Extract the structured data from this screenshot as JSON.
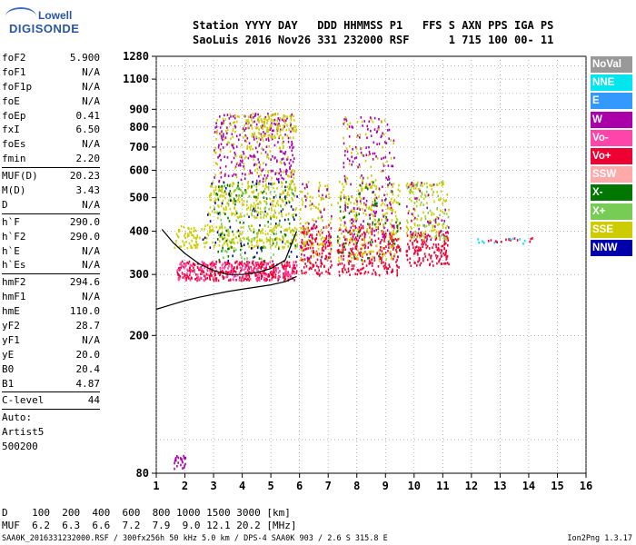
{
  "logo": {
    "line1": "Lowell",
    "line2": "DIGISONDE"
  },
  "header": {
    "line1": "Station YYYY DAY   DDD HHMMSS P1   FFS S AXN PPS IGA PS",
    "line2": "SaoLuis 2016 Nov26 331 232000 RSF      1 715 100 00- 11"
  },
  "params": [
    {
      "label": "foF2",
      "value": "5.900"
    },
    {
      "label": "foF1",
      "value": "N/A"
    },
    {
      "label": "foF1p",
      "value": "N/A"
    },
    {
      "label": "foE",
      "value": "N/A"
    },
    {
      "label": "foEp",
      "value": "0.41"
    },
    {
      "label": "fxI",
      "value": "6.50"
    },
    {
      "label": "foEs",
      "value": "N/A"
    },
    {
      "label": "fmin",
      "value": "2.20"
    },
    {
      "sep": true
    },
    {
      "label": "MUF(D)",
      "value": "20.23"
    },
    {
      "label": "M(D)",
      "value": "3.43"
    },
    {
      "label": "D",
      "value": "N/A"
    },
    {
      "sep": true
    },
    {
      "label": "h`F",
      "value": "290.0"
    },
    {
      "label": "h`F2",
      "value": "290.0"
    },
    {
      "label": "h`E",
      "value": "N/A"
    },
    {
      "label": "h`Es",
      "value": "N/A"
    },
    {
      "sep": true
    },
    {
      "label": "hmF2",
      "value": "294.6"
    },
    {
      "label": "hmF1",
      "value": "N/A"
    },
    {
      "label": "hmE",
      "value": "110.0"
    },
    {
      "label": "yF2",
      "value": "28.7"
    },
    {
      "label": "yF1",
      "value": "N/A"
    },
    {
      "label": "yE",
      "value": "20.0"
    },
    {
      "label": "B0",
      "value": "20.4"
    },
    {
      "label": "B1",
      "value": "4.87"
    },
    {
      "sep": true
    },
    {
      "label": "C-level",
      "value": "44"
    },
    {
      "sep": true
    },
    {
      "label": "Auto:",
      "value": ""
    },
    {
      "label": "Artist5",
      "value": ""
    },
    {
      "label": "500200",
      "value": ""
    }
  ],
  "legend": [
    {
      "label": "NoVal",
      "color": "#999999"
    },
    {
      "label": "NNE",
      "color": "#00e5ee"
    },
    {
      "label": "E",
      "color": "#3399ff"
    },
    {
      "label": "W",
      "color": "#aa00aa"
    },
    {
      "label": "Vo-",
      "color": "#ff44aa"
    },
    {
      "label": "Vo+",
      "color": "#ee0033"
    },
    {
      "label": "SSW",
      "color": "#ffaaaa"
    },
    {
      "label": "X-",
      "color": "#007700"
    },
    {
      "label": "X+",
      "color": "#77cc55"
    },
    {
      "label": "SSE",
      "color": "#cccc00"
    },
    {
      "label": "NNW",
      "color": "#0000aa"
    }
  ],
  "chart_data": {
    "type": "scatter",
    "title": "",
    "xlabel": "",
    "ylabel": "",
    "xlim": [
      1,
      16
    ],
    "ylim": [
      80,
      1280
    ],
    "y_scale": "log",
    "xticks": [
      1,
      2,
      3,
      4,
      5,
      6,
      7,
      8,
      9,
      10,
      11,
      12,
      13,
      14,
      15,
      16
    ],
    "yticks": [
      80,
      200,
      300,
      400,
      500,
      600,
      700,
      800,
      900,
      1100,
      1280
    ],
    "grid": true,
    "profile_curve": {
      "x": [
        1.0,
        1.5,
        2.0,
        2.5,
        3.0,
        3.5,
        4.0,
        4.5,
        5.0,
        5.5,
        5.9
      ],
      "y": [
        238,
        245,
        252,
        258,
        263,
        268,
        272,
        276,
        280,
        286,
        296
      ]
    },
    "trace_curve": {
      "x": [
        1.2,
        1.6,
        2.0,
        2.5,
        3.0,
        3.5,
        4.0,
        4.5,
        5.0,
        5.5,
        5.9
      ],
      "y": [
        405,
        370,
        345,
        322,
        308,
        300,
        300,
        304,
        312,
        330,
        400
      ]
    },
    "clusters": [
      {
        "x": [
          1.7,
          5.9
        ],
        "y": [
          290,
          330
        ],
        "color": "#ee0033",
        "n": 380
      },
      {
        "x": [
          1.7,
          5.9
        ],
        "y": [
          290,
          330
        ],
        "color": "#ff44aa",
        "n": 160
      },
      {
        "x": [
          1.6,
          5.9
        ],
        "y": [
          360,
          420
        ],
        "color": "#cccc00",
        "n": 240
      },
      {
        "x": [
          2.8,
          5.9
        ],
        "y": [
          440,
          560
        ],
        "color": "#cccc00",
        "n": 240
      },
      {
        "x": [
          3.0,
          5.8
        ],
        "y": [
          560,
          880
        ],
        "color": "#aa00aa",
        "n": 260
      },
      {
        "x": [
          3.0,
          5.8
        ],
        "y": [
          560,
          880
        ],
        "color": "#cccc00",
        "n": 140
      },
      {
        "x": [
          4.0,
          5.9
        ],
        "y": [
          750,
          880
        ],
        "color": "#cccc00",
        "n": 90
      },
      {
        "x": [
          3.0,
          5.9
        ],
        "y": [
          330,
          560
        ],
        "color": "#007700",
        "n": 90
      },
      {
        "x": [
          3.0,
          5.9
        ],
        "y": [
          330,
          560
        ],
        "color": "#77cc55",
        "n": 90
      },
      {
        "x": [
          2.6,
          5.9
        ],
        "y": [
          330,
          560
        ],
        "color": "#0000aa",
        "n": 60
      },
      {
        "x": [
          6.0,
          7.1
        ],
        "y": [
          300,
          420
        ],
        "color": "#ee0033",
        "n": 150
      },
      {
        "x": [
          6.0,
          7.1
        ],
        "y": [
          330,
          560
        ],
        "color": "#cccc00",
        "n": 110
      },
      {
        "x": [
          6.0,
          7.1
        ],
        "y": [
          330,
          560
        ],
        "color": "#aa00aa",
        "n": 40
      },
      {
        "x": [
          7.3,
          9.5
        ],
        "y": [
          300,
          420
        ],
        "color": "#ee0033",
        "n": 260
      },
      {
        "x": [
          7.3,
          9.5
        ],
        "y": [
          330,
          560
        ],
        "color": "#cccc00",
        "n": 190
      },
      {
        "x": [
          7.5,
          9.3
        ],
        "y": [
          380,
          860
        ],
        "color": "#aa00aa",
        "n": 180
      },
      {
        "x": [
          7.5,
          9.3
        ],
        "y": [
          380,
          860
        ],
        "color": "#cccc00",
        "n": 90
      },
      {
        "x": [
          7.3,
          9.5
        ],
        "y": [
          330,
          560
        ],
        "color": "#007700",
        "n": 60
      },
      {
        "x": [
          9.7,
          11.2
        ],
        "y": [
          320,
          400
        ],
        "color": "#ee0033",
        "n": 150
      },
      {
        "x": [
          9.7,
          11.2
        ],
        "y": [
          380,
          560
        ],
        "color": "#cccc00",
        "n": 130
      },
      {
        "x": [
          9.7,
          11.2
        ],
        "y": [
          380,
          560
        ],
        "color": "#aa00aa",
        "n": 40
      },
      {
        "x": [
          9.7,
          11.2
        ],
        "y": [
          380,
          560
        ],
        "color": "#77cc55",
        "n": 40
      },
      {
        "x": [
          12.0,
          14.3
        ],
        "y": [
          370,
          385
        ],
        "color": "#ee0033",
        "n": 14
      },
      {
        "x": [
          12.0,
          14.3
        ],
        "y": [
          370,
          385
        ],
        "color": "#00e5ee",
        "n": 10
      },
      {
        "x": [
          1.6,
          2.0
        ],
        "y": [
          82,
          92
        ],
        "color": "#aa00aa",
        "n": 25
      }
    ]
  },
  "bottom": {
    "d_line": "D    100  200  400  600  800 1000 1500 3000 [km]",
    "muf_line": "MUF  6.2  6.3  6.6  7.2  7.9  9.0 12.1 20.2 [MHz]"
  },
  "footer": {
    "text": "SAA0K_2016331232000.RSF / 300fx256h 50 kHz 5.0 km / DPS-4 SAA0K 903 / 2.6 S 315.8 E",
    "version": "Ion2Png 1.3.17"
  }
}
